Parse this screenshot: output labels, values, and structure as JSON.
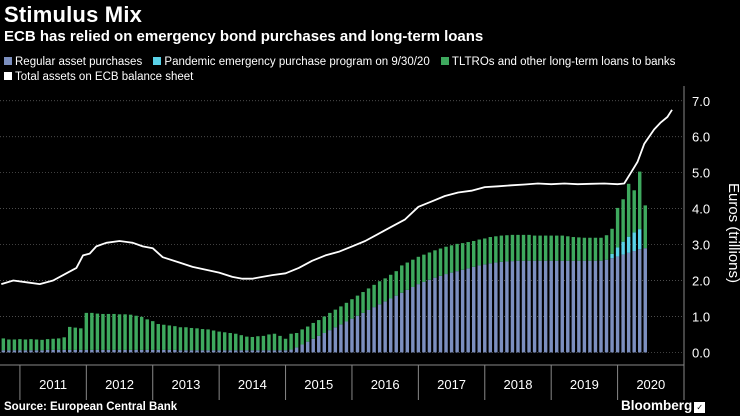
{
  "header": {
    "title": "Stimulus Mix",
    "subtitle": "ECB has relied on emergency bond purchases and long-term loans"
  },
  "footer": {
    "source": "Source: European Central Bank",
    "brand": "Bloomberg"
  },
  "chart_data": {
    "type": "bar",
    "title": "Stimulus Mix",
    "subtitle": "ECB has relied on emergency bond purchases and long-term loans",
    "ylabel": "Euros (trillions)",
    "ylim": [
      -0.35,
      7.3
    ],
    "yticks": [
      "0.0",
      "1.0",
      "2.0",
      "3.0",
      "4.0",
      "5.0",
      "6.0",
      "7.0"
    ],
    "xlim": [
      2010.7,
      2021.0
    ],
    "year_labels": [
      "2011",
      "2012",
      "2013",
      "2014",
      "2015",
      "2016",
      "2017",
      "2018",
      "2019",
      "2020"
    ],
    "grid": true,
    "legend_position": "top",
    "colors": {
      "regular": "#7c8fbf",
      "pepp": "#5ad2e8",
      "tltro": "#3ea95e",
      "total": "#ffffff",
      "grid": "#666666",
      "background": "#000000"
    },
    "series": [
      {
        "name": "Regular asset purchases",
        "key": "regular",
        "kind": "stacked-bar",
        "values": [
          0.06,
          0.06,
          0.06,
          0.06,
          0.06,
          0.06,
          0.06,
          0.06,
          0.07,
          0.07,
          0.07,
          0.07,
          0.07,
          0.07,
          0.07,
          0.07,
          0.07,
          0.07,
          0.07,
          0.07,
          0.07,
          0.07,
          0.07,
          0.07,
          0.07,
          0.07,
          0.07,
          0.07,
          0.07,
          0.07,
          0.07,
          0.07,
          0.06,
          0.06,
          0.06,
          0.06,
          0.06,
          0.06,
          0.06,
          0.06,
          0.06,
          0.06,
          0.06,
          0.06,
          0.06,
          0.06,
          0.06,
          0.06,
          0.06,
          0.06,
          0.06,
          0.06,
          0.08,
          0.14,
          0.22,
          0.3,
          0.38,
          0.46,
          0.54,
          0.62,
          0.7,
          0.78,
          0.86,
          0.94,
          1.02,
          1.1,
          1.18,
          1.26,
          1.34,
          1.42,
          1.5,
          1.58,
          1.66,
          1.74,
          1.82,
          1.9,
          1.96,
          2.02,
          2.08,
          2.13,
          2.18,
          2.22,
          2.26,
          2.3,
          2.34,
          2.38,
          2.42,
          2.45,
          2.48,
          2.5,
          2.52,
          2.53,
          2.54,
          2.55,
          2.55,
          2.55,
          2.55,
          2.55,
          2.55,
          2.55,
          2.55,
          2.55,
          2.55,
          2.55,
          2.55,
          2.55,
          2.55,
          2.55,
          2.55,
          2.58,
          2.62,
          2.67,
          2.72,
          2.77,
          2.82,
          2.87,
          2.9
        ]
      },
      {
        "name": "Pandemic emergency purchase program on 9/30/20",
        "key": "pepp",
        "kind": "stacked-bar",
        "values": [
          0,
          0,
          0,
          0,
          0,
          0,
          0,
          0,
          0,
          0,
          0,
          0,
          0,
          0,
          0,
          0,
          0,
          0,
          0,
          0,
          0,
          0,
          0,
          0,
          0,
          0,
          0,
          0,
          0,
          0,
          0,
          0,
          0,
          0,
          0,
          0,
          0,
          0,
          0,
          0,
          0,
          0,
          0,
          0,
          0,
          0,
          0,
          0,
          0,
          0,
          0,
          0,
          0,
          0,
          0,
          0,
          0,
          0,
          0,
          0,
          0,
          0,
          0,
          0,
          0,
          0,
          0,
          0,
          0,
          0,
          0,
          0,
          0,
          0,
          0,
          0,
          0,
          0,
          0,
          0,
          0,
          0,
          0,
          0,
          0,
          0,
          0,
          0,
          0,
          0,
          0,
          0,
          0,
          0,
          0,
          0,
          0,
          0,
          0,
          0,
          0,
          0,
          0,
          0,
          0,
          0,
          0,
          0,
          0,
          0,
          0.12,
          0.25,
          0.36,
          0.45,
          0.52,
          0.56
        ]
      },
      {
        "name": "TLTROs and other long-term loans to banks",
        "key": "tltro",
        "kind": "stacked-bar",
        "values": [
          0.33,
          0.3,
          0.3,
          0.31,
          0.3,
          0.31,
          0.3,
          0.29,
          0.3,
          0.31,
          0.32,
          0.35,
          0.64,
          0.62,
          0.6,
          1.03,
          1.03,
          1.01,
          1.0,
          1.0,
          1.0,
          0.99,
          0.99,
          0.98,
          0.95,
          0.92,
          0.85,
          0.8,
          0.72,
          0.7,
          0.68,
          0.66,
          0.64,
          0.64,
          0.62,
          0.61,
          0.59,
          0.58,
          0.55,
          0.52,
          0.5,
          0.48,
          0.46,
          0.42,
          0.38,
          0.37,
          0.39,
          0.4,
          0.44,
          0.46,
          0.4,
          0.32,
          0.44,
          0.4,
          0.42,
          0.42,
          0.44,
          0.44,
          0.46,
          0.48,
          0.49,
          0.5,
          0.52,
          0.54,
          0.56,
          0.58,
          0.6,
          0.62,
          0.64,
          0.64,
          0.66,
          0.68,
          0.76,
          0.76,
          0.76,
          0.76,
          0.76,
          0.76,
          0.76,
          0.76,
          0.76,
          0.76,
          0.76,
          0.74,
          0.73,
          0.72,
          0.72,
          0.72,
          0.73,
          0.73,
          0.73,
          0.73,
          0.73,
          0.72,
          0.72,
          0.72,
          0.7,
          0.7,
          0.7,
          0.7,
          0.7,
          0.7,
          0.68,
          0.66,
          0.65,
          0.64,
          0.64,
          0.64,
          0.64,
          0.68,
          0.7,
          1.1,
          1.18,
          1.47,
          1.17,
          1.6,
          1.19
        ]
      },
      {
        "name": "Total assets on ECB balance sheet",
        "key": "total",
        "kind": "line",
        "x": [
          2010.72,
          2010.9,
          2011.1,
          2011.3,
          2011.5,
          2011.7,
          2011.85,
          2011.95,
          2012.05,
          2012.15,
          2012.3,
          2012.5,
          2012.7,
          2012.85,
          2013.0,
          2013.15,
          2013.4,
          2013.6,
          2013.8,
          2014.0,
          2014.2,
          2014.35,
          2014.5,
          2014.65,
          2014.8,
          2015.0,
          2015.2,
          2015.4,
          2015.6,
          2015.8,
          2016.0,
          2016.2,
          2016.4,
          2016.6,
          2016.8,
          2017.0,
          2017.2,
          2017.4,
          2017.6,
          2017.8,
          2018.0,
          2018.2,
          2018.4,
          2018.6,
          2018.8,
          2019.0,
          2019.2,
          2019.4,
          2019.6,
          2019.8,
          2020.0,
          2020.1,
          2020.2,
          2020.3,
          2020.4,
          2020.55,
          2020.65,
          2020.75,
          2020.82
        ],
        "values": [
          1.9,
          2.0,
          1.95,
          1.9,
          2.0,
          2.2,
          2.35,
          2.7,
          2.75,
          2.95,
          3.05,
          3.1,
          3.05,
          2.95,
          2.9,
          2.65,
          2.5,
          2.38,
          2.3,
          2.22,
          2.1,
          2.05,
          2.05,
          2.1,
          2.15,
          2.2,
          2.35,
          2.55,
          2.7,
          2.8,
          2.95,
          3.1,
          3.3,
          3.5,
          3.7,
          4.05,
          4.2,
          4.35,
          4.45,
          4.5,
          4.6,
          4.62,
          4.65,
          4.67,
          4.7,
          4.68,
          4.7,
          4.68,
          4.69,
          4.7,
          4.68,
          4.7,
          5.0,
          5.3,
          5.8,
          6.2,
          6.4,
          6.55,
          6.75
        ]
      }
    ]
  }
}
